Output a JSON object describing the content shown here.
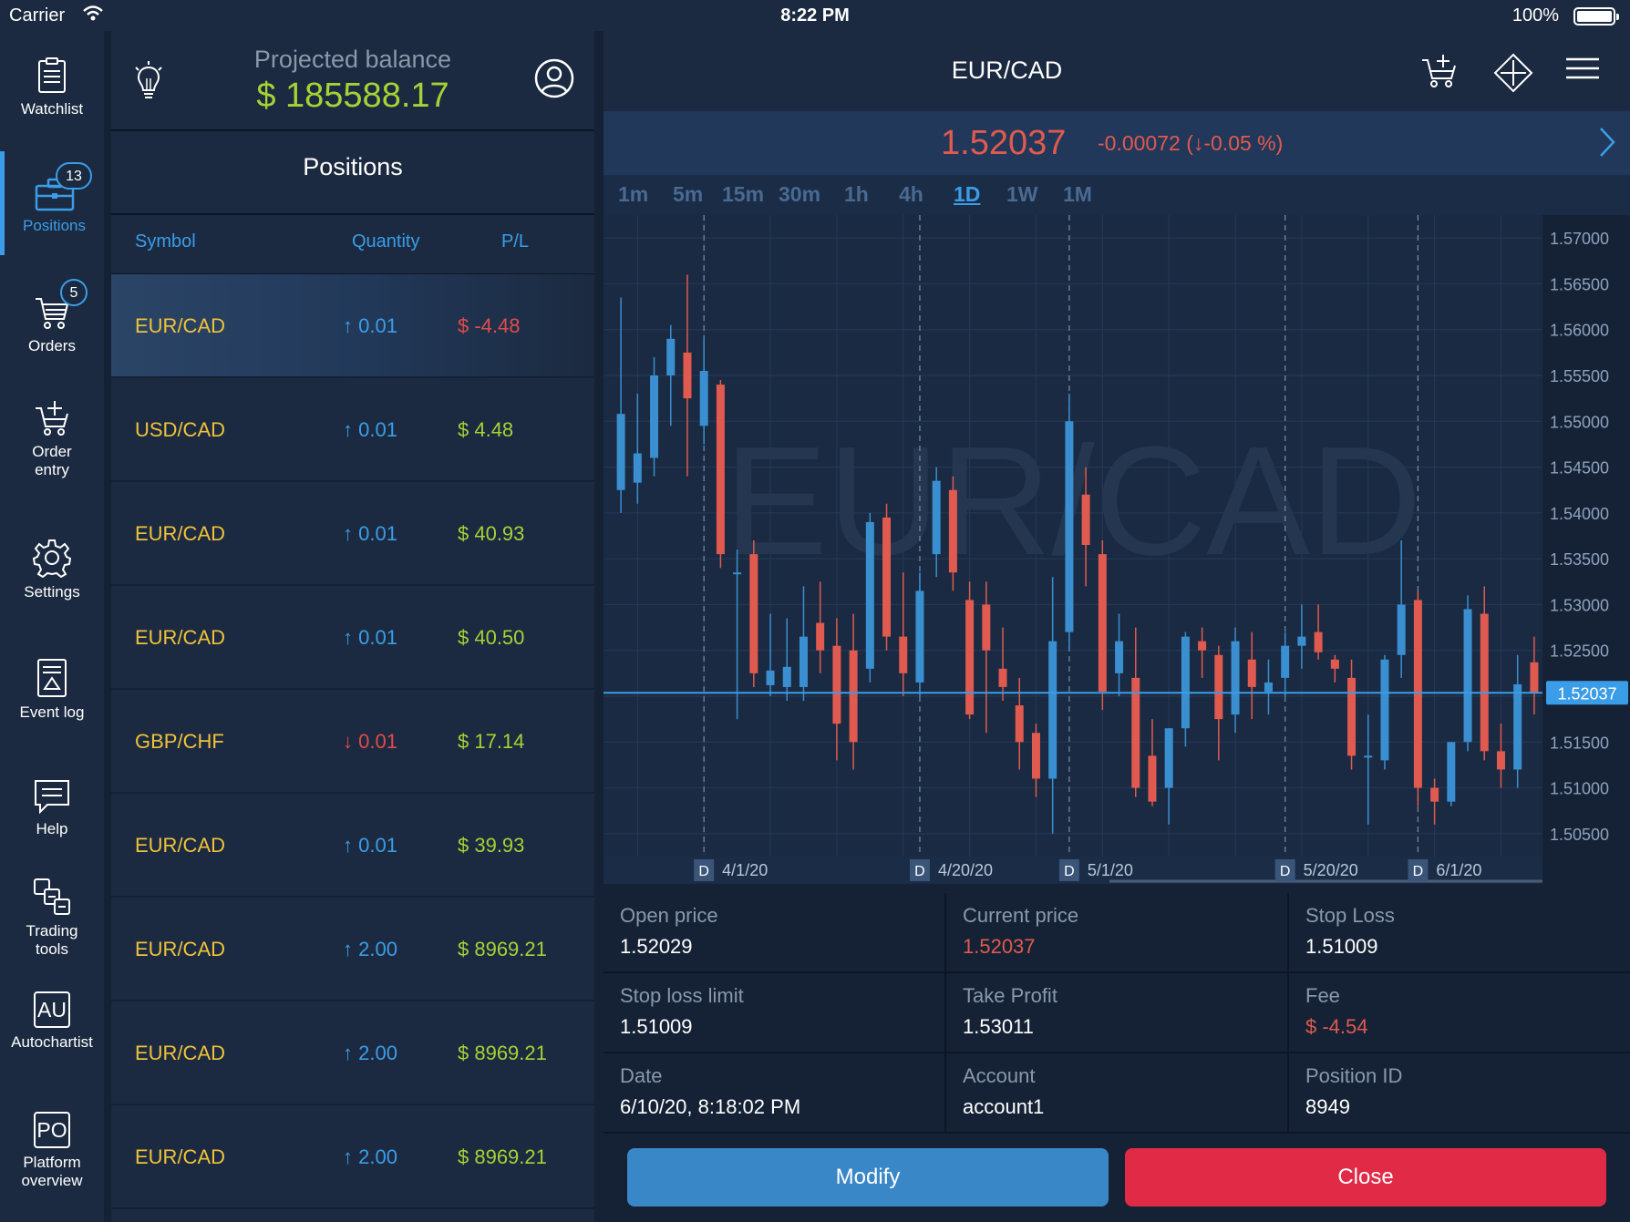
{
  "status_bar": {
    "carrier": "Carrier",
    "time": "8:22 PM",
    "battery": "100%",
    "battery_level": 1.0
  },
  "nav": {
    "items": [
      {
        "label": "Watchlist",
        "icon": "watchlist-icon"
      },
      {
        "label": "Positions",
        "icon": "briefcase-icon",
        "badge": "13",
        "active": true
      },
      {
        "label": "Orders",
        "icon": "cart-icon",
        "badge": "5"
      },
      {
        "label": "Order entry",
        "icon": "cart-add-icon"
      },
      {
        "label": "Settings",
        "icon": "gear-icon"
      },
      {
        "label": "Event log",
        "icon": "event-log-icon"
      },
      {
        "label": "Help",
        "icon": "help-icon"
      },
      {
        "label": "Trading tools",
        "icon": "trading-tools-icon"
      },
      {
        "label": "Autochartist",
        "icon": "au-icon",
        "icon_text": "AU"
      },
      {
        "label": "Platform overview",
        "icon": "po-icon",
        "icon_text": "PO"
      }
    ]
  },
  "balance": {
    "label": "Projected balance",
    "value": "$ 185588.17"
  },
  "positions": {
    "title": "Positions",
    "columns": {
      "symbol": "Symbol",
      "quantity": "Quantity",
      "pl": "P/L"
    },
    "rows": [
      {
        "symbol": "EUR/CAD",
        "direction": "up",
        "quantity": "0.01",
        "pl": "$ -4.48",
        "pl_negative": true,
        "selected": true
      },
      {
        "symbol": "USD/CAD",
        "direction": "up",
        "quantity": "0.01",
        "pl": "$ 4.48"
      },
      {
        "symbol": "EUR/CAD",
        "direction": "up",
        "quantity": "0.01",
        "pl": "$ 40.93"
      },
      {
        "symbol": "EUR/CAD",
        "direction": "up",
        "quantity": "0.01",
        "pl": "$ 40.50"
      },
      {
        "symbol": "GBP/CHF",
        "direction": "down",
        "quantity": "0.01",
        "pl": "$ 17.14"
      },
      {
        "symbol": "EUR/CAD",
        "direction": "up",
        "quantity": "0.01",
        "pl": "$ 39.93"
      },
      {
        "symbol": "EUR/CAD",
        "direction": "up",
        "quantity": "2.00",
        "pl": "$ 8969.21"
      },
      {
        "symbol": "EUR/CAD",
        "direction": "up",
        "quantity": "2.00",
        "pl": "$ 8969.21"
      },
      {
        "symbol": "EUR/CAD",
        "direction": "up",
        "quantity": "2.00",
        "pl": "$ 8969.21"
      }
    ]
  },
  "chart_header": {
    "title": "EUR/CAD",
    "price": "1.52037",
    "change": "-0.00072 (↓-0.05 %)"
  },
  "timeframes": [
    "1m",
    "5m",
    "15m",
    "30m",
    "1h",
    "4h",
    "1D",
    "1W",
    "1M"
  ],
  "active_timeframe": "1D",
  "chart_data": {
    "type": "candlestick",
    "watermark": "EUR/CAD",
    "y_ticks": [
      "1.57000",
      "1.56500",
      "1.56000",
      "1.55500",
      "1.55000",
      "1.54500",
      "1.54000",
      "1.53500",
      "1.53000",
      "1.52500",
      "1.52000",
      "1.51500",
      "1.51000",
      "1.50500"
    ],
    "ylim": [
      1.5025,
      1.5725
    ],
    "current_price": 1.52037,
    "current_price_label": "1.52037",
    "date_markers": [
      {
        "index": 5,
        "flag": "D",
        "label": "4/1/20"
      },
      {
        "index": 18,
        "flag": "D",
        "label": "4/20/20"
      },
      {
        "index": 27,
        "flag": "D",
        "label": "5/1/20"
      },
      {
        "index": 40,
        "flag": "D",
        "label": "5/20/20"
      },
      {
        "index": 48,
        "flag": "D",
        "label": "6/1/20"
      }
    ],
    "candles": [
      {
        "o": 1.5425,
        "h": 1.5635,
        "l": 1.54,
        "c": 1.5508
      },
      {
        "o": 1.5433,
        "h": 1.553,
        "l": 1.541,
        "c": 1.5465
      },
      {
        "o": 1.546,
        "h": 1.557,
        "l": 1.544,
        "c": 1.555
      },
      {
        "o": 1.555,
        "h": 1.5605,
        "l": 1.5495,
        "c": 1.559
      },
      {
        "o": 1.5575,
        "h": 1.566,
        "l": 1.544,
        "c": 1.5525
      },
      {
        "o": 1.5495,
        "h": 1.559,
        "l": 1.5475,
        "c": 1.5555
      },
      {
        "o": 1.554,
        "h": 1.5545,
        "l": 1.534,
        "c": 1.5355
      },
      {
        "o": 1.5335,
        "h": 1.536,
        "l": 1.5175,
        "c": 1.5335
      },
      {
        "o": 1.5355,
        "h": 1.537,
        "l": 1.521,
        "c": 1.5225
      },
      {
        "o": 1.5212,
        "h": 1.529,
        "l": 1.52,
        "c": 1.5228
      },
      {
        "o": 1.521,
        "h": 1.5285,
        "l": 1.5195,
        "c": 1.5232
      },
      {
        "o": 1.521,
        "h": 1.532,
        "l": 1.5195,
        "c": 1.5265
      },
      {
        "o": 1.528,
        "h": 1.5325,
        "l": 1.5225,
        "c": 1.525
      },
      {
        "o": 1.5255,
        "h": 1.5285,
        "l": 1.513,
        "c": 1.517
      },
      {
        "o": 1.525,
        "h": 1.529,
        "l": 1.512,
        "c": 1.515
      },
      {
        "o": 1.523,
        "h": 1.54,
        "l": 1.5215,
        "c": 1.539
      },
      {
        "o": 1.5395,
        "h": 1.541,
        "l": 1.525,
        "c": 1.5265
      },
      {
        "o": 1.5265,
        "h": 1.5335,
        "l": 1.52,
        "c": 1.5225
      },
      {
        "o": 1.5215,
        "h": 1.5335,
        "l": 1.52,
        "c": 1.5315
      },
      {
        "o": 1.5355,
        "h": 1.545,
        "l": 1.533,
        "c": 1.5435
      },
      {
        "o": 1.5425,
        "h": 1.544,
        "l": 1.5315,
        "c": 1.5335
      },
      {
        "o": 1.5305,
        "h": 1.5325,
        "l": 1.5175,
        "c": 1.518
      },
      {
        "o": 1.53,
        "h": 1.5325,
        "l": 1.516,
        "c": 1.525
      },
      {
        "o": 1.523,
        "h": 1.5275,
        "l": 1.5195,
        "c": 1.521
      },
      {
        "o": 1.519,
        "h": 1.522,
        "l": 1.512,
        "c": 1.515
      },
      {
        "o": 1.516,
        "h": 1.517,
        "l": 1.509,
        "c": 1.511
      },
      {
        "o": 1.511,
        "h": 1.533,
        "l": 1.505,
        "c": 1.526
      },
      {
        "o": 1.527,
        "h": 1.553,
        "l": 1.525,
        "c": 1.55
      },
      {
        "o": 1.542,
        "h": 1.545,
        "l": 1.532,
        "c": 1.5365
      },
      {
        "o": 1.5355,
        "h": 1.537,
        "l": 1.5185,
        "c": 1.5205
      },
      {
        "o": 1.5225,
        "h": 1.529,
        "l": 1.52,
        "c": 1.526
      },
      {
        "o": 1.522,
        "h": 1.5275,
        "l": 1.509,
        "c": 1.51
      },
      {
        "o": 1.5135,
        "h": 1.5175,
        "l": 1.508,
        "c": 1.5085
      },
      {
        "o": 1.51,
        "h": 1.5165,
        "l": 1.506,
        "c": 1.5165
      },
      {
        "o": 1.5165,
        "h": 1.527,
        "l": 1.5145,
        "c": 1.5265
      },
      {
        "o": 1.526,
        "h": 1.5275,
        "l": 1.522,
        "c": 1.525
      },
      {
        "o": 1.5245,
        "h": 1.5255,
        "l": 1.513,
        "c": 1.5175
      },
      {
        "o": 1.518,
        "h": 1.5275,
        "l": 1.516,
        "c": 1.526
      },
      {
        "o": 1.524,
        "h": 1.527,
        "l": 1.5175,
        "c": 1.521
      },
      {
        "o": 1.5205,
        "h": 1.524,
        "l": 1.518,
        "c": 1.5215
      },
      {
        "o": 1.522,
        "h": 1.527,
        "l": 1.52,
        "c": 1.5255
      },
      {
        "o": 1.5255,
        "h": 1.53,
        "l": 1.523,
        "c": 1.5265
      },
      {
        "o": 1.527,
        "h": 1.53,
        "l": 1.524,
        "c": 1.5248
      },
      {
        "o": 1.524,
        "h": 1.5245,
        "l": 1.5215,
        "c": 1.523
      },
      {
        "o": 1.522,
        "h": 1.524,
        "l": 1.512,
        "c": 1.5135
      },
      {
        "o": 1.5135,
        "h": 1.518,
        "l": 1.506,
        "c": 1.5135
      },
      {
        "o": 1.513,
        "h": 1.5245,
        "l": 1.512,
        "c": 1.524
      },
      {
        "o": 1.5245,
        "h": 1.537,
        "l": 1.522,
        "c": 1.53
      },
      {
        "o": 1.5305,
        "h": 1.5315,
        "l": 1.508,
        "c": 1.51
      },
      {
        "o": 1.51,
        "h": 1.511,
        "l": 1.506,
        "c": 1.5085
      },
      {
        "o": 1.5085,
        "h": 1.515,
        "l": 1.508,
        "c": 1.515
      },
      {
        "o": 1.515,
        "h": 1.531,
        "l": 1.514,
        "c": 1.5295
      },
      {
        "o": 1.529,
        "h": 1.532,
        "l": 1.513,
        "c": 1.514
      },
      {
        "o": 1.514,
        "h": 1.517,
        "l": 1.51,
        "c": 1.512
      },
      {
        "o": 1.512,
        "h": 1.5245,
        "l": 1.51,
        "c": 1.5213
      },
      {
        "o": 1.5237,
        "h": 1.5265,
        "l": 1.518,
        "c": 1.5204
      }
    ]
  },
  "details": [
    {
      "label": "Open price",
      "value": "1.52029"
    },
    {
      "label": "Current price",
      "value": "1.52037",
      "red": true
    },
    {
      "label": "Stop Loss",
      "value": "1.51009"
    },
    {
      "label": "Stop loss limit",
      "value": "1.51009"
    },
    {
      "label": "Take Profit",
      "value": "1.53011"
    },
    {
      "label": "Fee",
      "value": "$ -4.54",
      "red": true
    },
    {
      "label": "Date",
      "value": "6/10/20, 8:18:02 PM"
    },
    {
      "label": "Account",
      "value": "account1"
    },
    {
      "label": "Position ID",
      "value": "8949"
    }
  ],
  "buttons": {
    "modify": "Modify",
    "close": "Close"
  },
  "colors": {
    "accent": "#3b9de8",
    "up": "#3a8fd0",
    "down": "#e05a4f",
    "balance": "#a6d235",
    "symbol": "#f0c23b",
    "close_button": "#e02a46"
  }
}
